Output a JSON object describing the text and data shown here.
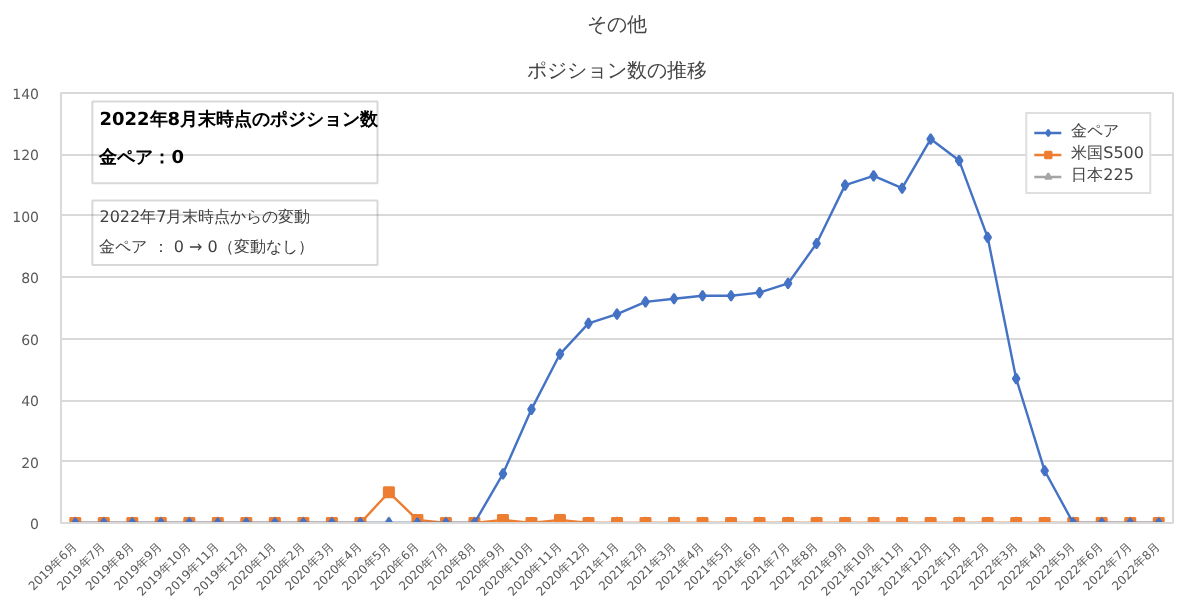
{
  "chart_data": {
    "type": "line",
    "title": "その他",
    "subtitle": "ポジション数の推移",
    "categories": [
      "2019年6月",
      "2019年7月",
      "2019年8月",
      "2019年9月",
      "2019年10月",
      "2019年11月",
      "2019年12月",
      "2020年1月",
      "2020年2月",
      "2020年3月",
      "2020年4月",
      "2020年5月",
      "2020年6月",
      "2020年7月",
      "2020年8月",
      "2020年9月",
      "2020年10月",
      "2020年11月",
      "2020年12月",
      "2021年1月",
      "2021年2月",
      "2021年3月",
      "2021年4月",
      "2021年5月",
      "2021年6月",
      "2021年7月",
      "2021年8月",
      "2021年9月",
      "2021年10月",
      "2021年11月",
      "2021年12月",
      "2022年1月",
      "2022年2月",
      "2022年3月",
      "2022年4月",
      "2022年5月",
      "2022年6月",
      "2022年7月",
      "2022年8月"
    ],
    "series": [
      {
        "name": "金ペア",
        "color": "#4472c4",
        "marker": "diamond",
        "values": [
          0,
          0,
          0,
          0,
          0,
          0,
          0,
          0,
          0,
          0,
          0,
          0,
          0,
          0,
          0,
          16,
          37,
          55,
          65,
          68,
          72,
          73,
          74,
          74,
          75,
          78,
          91,
          110,
          113,
          109,
          125,
          118,
          93,
          47,
          17,
          0,
          0,
          0,
          0
        ]
      },
      {
        "name": "米国S500",
        "color": "#ed7d31",
        "marker": "square",
        "values": [
          0,
          0,
          0,
          0,
          0,
          0,
          0,
          0,
          0,
          0,
          0,
          10,
          1,
          0,
          0,
          1,
          0,
          1,
          0,
          0,
          0,
          0,
          0,
          0,
          0,
          0,
          0,
          0,
          0,
          0,
          0,
          0,
          0,
          0,
          0,
          0,
          0,
          0,
          0
        ]
      },
      {
        "name": "日本225",
        "color": "#a5a5a5",
        "marker": "triangle",
        "values": [
          0,
          0,
          0,
          0,
          0,
          0,
          0,
          0,
          0,
          0,
          0,
          0,
          0,
          0,
          0,
          0,
          0,
          0,
          0,
          0,
          0,
          0,
          0,
          0,
          0,
          0,
          0,
          0,
          0,
          0,
          0,
          0,
          0,
          0,
          0,
          0,
          0,
          0,
          0
        ]
      }
    ],
    "ylim": [
      0,
      140
    ],
    "yticks": [
      0,
      20,
      40,
      60,
      80,
      100,
      120,
      140
    ],
    "grid": "y",
    "legend": "top right",
    "annotations": [
      "2022年8月末時点のポジション数",
      "金ペア：0",
      "2022年7月末時点からの変動",
      "金ペア ： 0 → 0（変動なし）"
    ]
  }
}
